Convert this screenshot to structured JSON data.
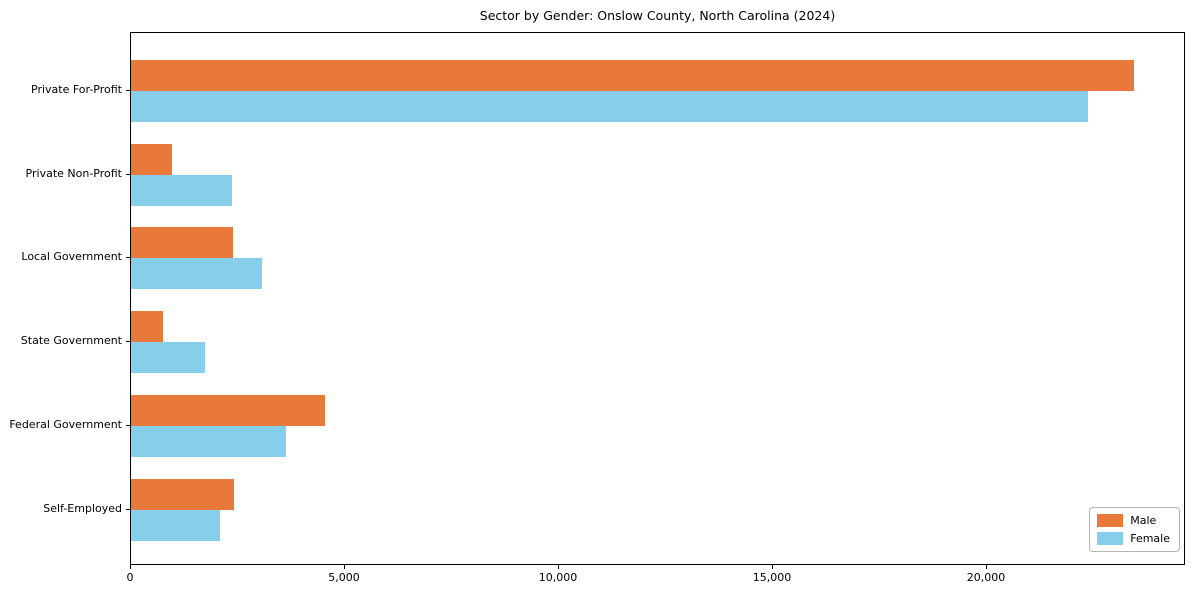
{
  "title": "Sector by Gender: Onslow County, North Carolina (2024)",
  "colors": {
    "male": "#e8793b",
    "female": "#87ceeb",
    "spine": "#000000",
    "background": "#ffffff"
  },
  "legend": {
    "entries": [
      {
        "label": "Male",
        "color": "#e8793b"
      },
      {
        "label": "Female",
        "color": "#87ceeb"
      }
    ]
  },
  "x_axis": {
    "ticks": [
      {
        "value": 0,
        "label": "0"
      },
      {
        "value": 5000,
        "label": "5,000"
      },
      {
        "value": 10000,
        "label": "10,000"
      },
      {
        "value": 15000,
        "label": "15,000"
      },
      {
        "value": 20000,
        "label": "20,000"
      }
    ]
  },
  "chart_data": {
    "type": "bar",
    "orientation": "horizontal",
    "title": "Sector by Gender: Onslow County, North Carolina (2024)",
    "categories": [
      "Private For-Profit",
      "Private Non-Profit",
      "Local Government",
      "State Government",
      "Federal Government",
      "Self-Employed"
    ],
    "series": [
      {
        "name": "Male",
        "color": "#e8793b",
        "values": [
          23480,
          960,
          2380,
          750,
          4530,
          2410
        ]
      },
      {
        "name": "Female",
        "color": "#87ceeb",
        "values": [
          22400,
          2360,
          3060,
          1730,
          3620,
          2080
        ]
      }
    ],
    "xlabel": "",
    "ylabel": "",
    "xlim": [
      0,
      24650
    ],
    "xticks": [
      0,
      5000,
      10000,
      15000,
      20000
    ],
    "grid": false,
    "legend_position": "lower right"
  }
}
